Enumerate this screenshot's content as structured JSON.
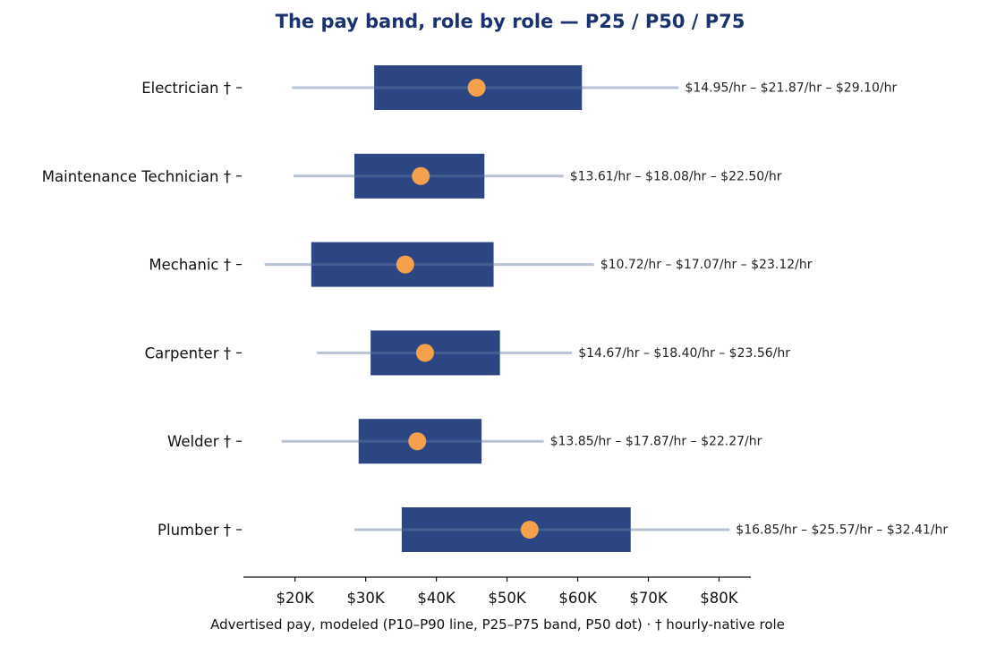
{
  "chart_data": {
    "type": "bar",
    "orientation": "horizontal",
    "title": "The pay band, role by role — P25 / P50 / P75",
    "xlabel": "Advertised pay, modeled (P10–P90 line, P25–P75 band, P50 dot) · † hourly-native role",
    "ylabel": "",
    "xlim": [
      12700,
      84500
    ],
    "x_ticks": [
      20000,
      30000,
      40000,
      50000,
      60000,
      70000,
      80000
    ],
    "x_tick_labels": [
      "$20K",
      "$30K",
      "$40K",
      "$50K",
      "$60K",
      "$70K",
      "$80K"
    ],
    "grid": false,
    "colors": {
      "band": "#2b4682",
      "whisker": "#b8c4d6",
      "median": "#f4a04d",
      "title": "#1a3370"
    },
    "categories": [
      "Electrician †",
      "Maintenance Technician †",
      "Mechanic †",
      "Carpenter †",
      "Welder †",
      "Plumber †"
    ],
    "series": [
      {
        "name": "P10",
        "values": [
          19600,
          19800,
          15700,
          23100,
          18100,
          28400
        ]
      },
      {
        "name": "P25",
        "values": [
          31200,
          28400,
          22300,
          30700,
          29000,
          35100
        ]
      },
      {
        "name": "P50",
        "values": [
          45700,
          37800,
          35600,
          38400,
          37300,
          53200
        ]
      },
      {
        "name": "P75",
        "values": [
          60600,
          46800,
          48100,
          49000,
          46400,
          67500
        ]
      },
      {
        "name": "P90",
        "values": [
          74300,
          58000,
          62300,
          59200,
          55200,
          81500
        ]
      }
    ],
    "annotations": [
      "$14.95/hr – $21.87/hr – $29.10/hr",
      "$13.61/hr – $18.08/hr – $22.50/hr",
      "$10.72/hr – $17.07/hr – $23.12/hr",
      "$14.67/hr – $18.40/hr – $23.56/hr",
      "$13.85/hr – $17.87/hr – $22.27/hr",
      "$16.85/hr – $25.57/hr – $32.41/hr"
    ]
  }
}
